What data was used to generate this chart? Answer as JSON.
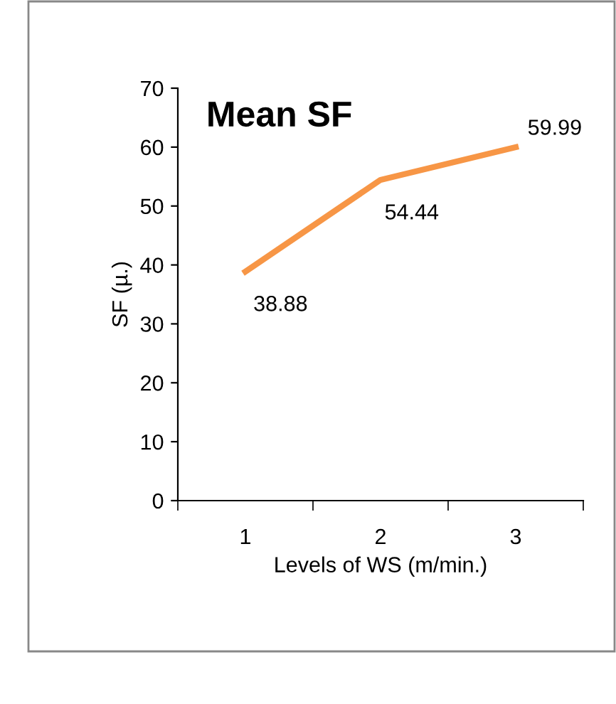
{
  "chart_data": {
    "type": "line",
    "title": "Mean SF",
    "xlabel": "Levels of WS (m/min.)",
    "ylabel": "SF (µ.)",
    "categories": [
      "1",
      "2",
      "3"
    ],
    "series": [
      {
        "color": "#f79646",
        "values": [
          38.88,
          54.44,
          59.99
        ]
      }
    ],
    "ylim": [
      0,
      70
    ],
    "yticks": [
      0,
      10,
      20,
      30,
      40,
      50,
      60,
      70
    ],
    "data_labels": true,
    "grid": false,
    "legend": false,
    "marker": "none",
    "line_style": "solid"
  }
}
